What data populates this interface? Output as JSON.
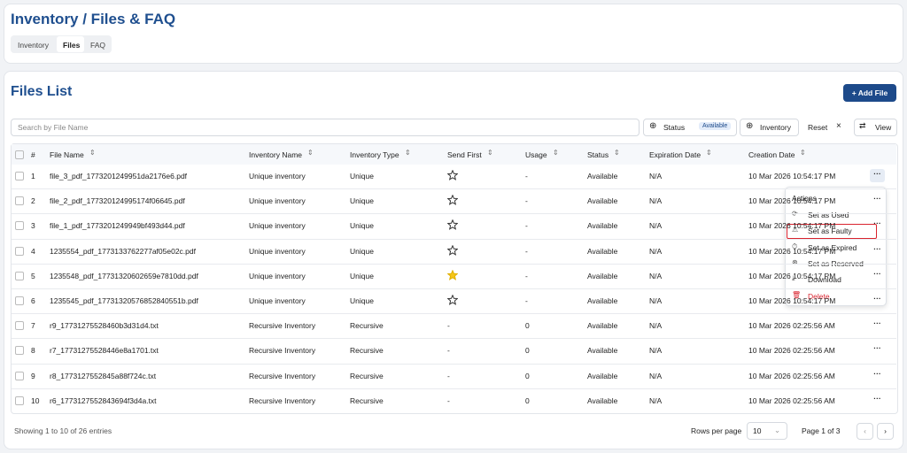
{
  "header": {
    "title": "Inventory / Files & FAQ",
    "tabs": [
      "Inventory",
      "Files",
      "FAQ"
    ]
  },
  "files": {
    "title": "Files List",
    "add_button": "+ Add File",
    "search_placeholder": "Search by File Name",
    "filters": {
      "status": "Status",
      "status_value": "Available",
      "inventory": "Inventory",
      "reset": "Reset",
      "view": "View"
    },
    "columns": [
      "#",
      "File Name",
      "Inventory Name",
      "Inventory Type",
      "Send First",
      "Usage",
      "Status",
      "Expiration Date",
      "Creation Date"
    ],
    "rows": [
      [
        "1",
        "file_3_pdf_1773201249951da2176e6.pdf",
        "Unique inventory",
        "Unique",
        false,
        "-",
        "Available",
        "N/A",
        "10 Mar 2026 10:54:17 PM"
      ],
      [
        "2",
        "file_2_pdf_177320124995174f06645.pdf",
        "Unique inventory",
        "Unique",
        false,
        "-",
        "Available",
        "N/A",
        "10 Mar 2026 10:54:17 PM"
      ],
      [
        "3",
        "file_1_pdf_1773201249949bf493d44.pdf",
        "Unique inventory",
        "Unique",
        false,
        "-",
        "Available",
        "N/A",
        "10 Mar 2026 10:54:17 PM"
      ],
      [
        "4",
        "1235554_pdf_1773133762277af05e02c.pdf",
        "Unique inventory",
        "Unique",
        false,
        "-",
        "Available",
        "N/A",
        "10 Mar 2026 10:54:17 PM"
      ],
      [
        "5",
        "1235548_pdf_17731320602659e7810dd.pdf",
        "Unique inventory",
        "Unique",
        true,
        "-",
        "Available",
        "N/A",
        "10 Mar 2026 10:54:17 PM"
      ],
      [
        "6",
        "1235545_pdf_17731320576852840551b.pdf",
        "Unique inventory",
        "Unique",
        false,
        "-",
        "Available",
        "N/A",
        "10 Mar 2026 10:54:17 PM"
      ],
      [
        "7",
        "r9_17731275528460b3d31d4.txt",
        "Recursive Inventory",
        "Recursive",
        "-",
        "0",
        "Available",
        "N/A",
        "10 Mar 2026 02:25:56 AM"
      ],
      [
        "8",
        "r7_17731275528446e8a1701.txt",
        "Recursive Inventory",
        "Recursive",
        "-",
        "0",
        "Available",
        "N/A",
        "10 Mar 2026 02:25:56 AM"
      ],
      [
        "9",
        "r8_1773127552845a88f724c.txt",
        "Recursive Inventory",
        "Recursive",
        "-",
        "0",
        "Available",
        "N/A",
        "10 Mar 2026 02:25:56 AM"
      ],
      [
        "10",
        "r6_1773127552843694f3d4a.txt",
        "Recursive Inventory",
        "Recursive",
        "-",
        "0",
        "Available",
        "N/A",
        "10 Mar 2026 02:25:56 AM"
      ]
    ],
    "footer": {
      "showing": "Showing 1 to 10 of 26 entries",
      "rows_per_page": "Rows per page",
      "rows_value": "10",
      "page": "Page 1 of 3"
    }
  },
  "menu": {
    "title": "Actions",
    "items": [
      "Set as Used",
      "Set as Faulty",
      "Set as Expired",
      "Set as Reserved",
      "Download",
      "Delete"
    ]
  }
}
